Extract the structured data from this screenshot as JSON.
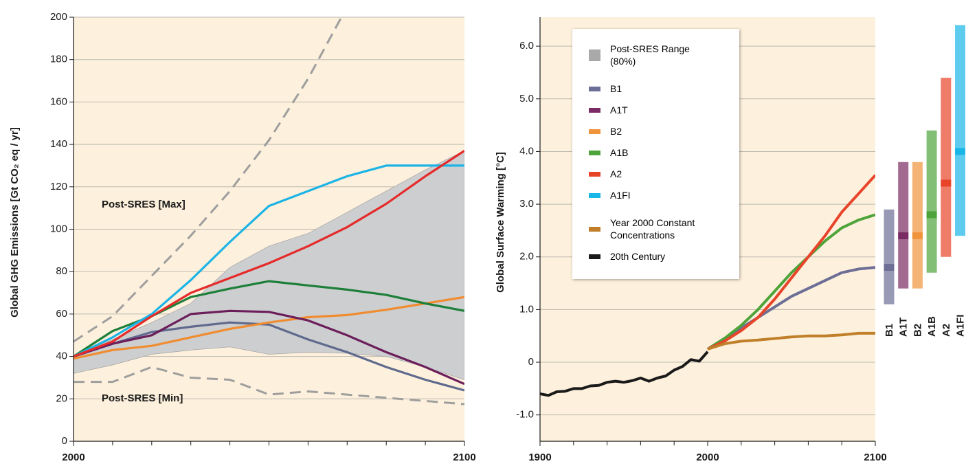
{
  "chart_data": [
    {
      "type": "line",
      "y_label": "Global GHG Emissions [Gt CO₂ eq / yr]",
      "xlim": [
        2000,
        2100
      ],
      "xticks": [
        2000,
        2100
      ],
      "x_minor_ticks": [
        2010,
        2020,
        2030,
        2040,
        2050,
        2060,
        2070,
        2080,
        2090
      ],
      "ylim": [
        0,
        200
      ],
      "yticks": [
        0,
        20,
        40,
        60,
        80,
        100,
        120,
        140,
        160,
        180,
        200
      ],
      "grid": true,
      "background": "#fdf0dc",
      "x": [
        2000,
        2010,
        2020,
        2030,
        2040,
        2050,
        2060,
        2070,
        2080,
        2090,
        2100
      ],
      "range": {
        "name": "Post-SRES Range (80%)",
        "color": "#cdcecf",
        "lower": [
          32,
          36,
          41,
          43,
          44.5,
          41,
          42,
          41.5,
          40,
          35,
          29
        ],
        "upper": [
          40,
          48,
          56,
          65,
          82,
          92,
          98,
          108,
          118,
          128,
          137
        ]
      },
      "series": [
        {
          "name": "Post-SRES [Max]",
          "color": "#9e9e9e",
          "dash": true,
          "values": [
            47,
            59,
            78,
            97,
            118,
            142,
            171,
            205,
            null,
            null,
            null
          ]
        },
        {
          "name": "Post-SRES [Min]",
          "color": "#9e9e9e",
          "dash": true,
          "values": [
            28,
            28,
            35,
            30,
            29,
            22,
            23.5,
            22,
            20.5,
            19,
            17.5
          ]
        },
        {
          "color": "#5f6a8e",
          "values": [
            40,
            46,
            51.5,
            54,
            56,
            55,
            48,
            42,
            35,
            29,
            24
          ]
        },
        {
          "color": "#f08c30",
          "values": [
            39,
            43,
            45,
            49,
            53,
            56,
            58.5,
            59.5,
            62,
            65,
            68
          ]
        },
        {
          "color": "#6b1e5a",
          "values": [
            40,
            46,
            50,
            60,
            61.5,
            61,
            57,
            50,
            42,
            35,
            27
          ]
        },
        {
          "color": "#1d7f3a",
          "values": [
            40,
            52,
            59,
            68,
            72,
            75.5,
            73.5,
            71.5,
            69,
            65,
            61.5
          ]
        },
        {
          "color": "#1cb4e6",
          "values": [
            40,
            49,
            60,
            76,
            94,
            111,
            118,
            125,
            130,
            130,
            130
          ]
        },
        {
          "color": "#e52a2a",
          "values": [
            40,
            47,
            59,
            70,
            77,
            84,
            92,
            101,
            112,
            125,
            137
          ]
        }
      ]
    },
    {
      "type": "line",
      "y_label": "Global Surface Warming [°C]",
      "xlim": [
        1900,
        2100
      ],
      "xticks": [
        1900,
        2000,
        2100
      ],
      "x_minor_ticks": [
        1920,
        1940,
        1960,
        1980,
        2020,
        2040,
        2060,
        2080
      ],
      "ylim": [
        -1.5,
        6.55
      ],
      "yticks": [
        {
          "value": -1,
          "label": "-1.0"
        },
        0,
        {
          "value": 1,
          "label": "1.0"
        },
        {
          "value": 2,
          "label": "2.0"
        },
        {
          "value": 3,
          "label": "3.0"
        },
        {
          "value": 4,
          "label": "4.0"
        },
        {
          "value": 5,
          "label": "5.0"
        },
        {
          "value": 6,
          "label": "6.0"
        }
      ],
      "grid": true,
      "background": "#fdf0dc",
      "scenario_x": [
        2000,
        2010,
        2020,
        2030,
        2040,
        2050,
        2060,
        2070,
        2080,
        2090,
        2100
      ],
      "scenarios": [
        {
          "name": "B1",
          "color": "#6c6e96",
          "low": 1.1,
          "best": 1.8,
          "high": 2.9,
          "values": [
            0.25,
            0.45,
            0.65,
            0.85,
            1.05,
            1.25,
            1.4,
            1.55,
            1.7,
            1.77,
            1.8
          ]
        },
        {
          "name": "A1T",
          "color": "#7a2b63",
          "low": 1.4,
          "best": 2.4,
          "high": 3.8
        },
        {
          "name": "B2",
          "color": "#f0943c",
          "low": 1.4,
          "best": 2.4,
          "high": 3.8
        },
        {
          "name": "A1B",
          "color": "#4ea43a",
          "low": 1.7,
          "best": 2.8,
          "high": 4.4,
          "values": [
            0.25,
            0.45,
            0.7,
            1.0,
            1.35,
            1.7,
            2.0,
            2.3,
            2.55,
            2.7,
            2.8
          ]
        },
        {
          "name": "A2",
          "color": "#e8442a",
          "low": 2.0,
          "best": 3.4,
          "high": 5.4,
          "values": [
            0.25,
            0.4,
            0.6,
            0.85,
            1.2,
            1.6,
            2.0,
            2.4,
            2.85,
            3.2,
            3.55
          ]
        },
        {
          "name": "A1FI",
          "color": "#1ab6e8",
          "low": 2.4,
          "best": 4.0,
          "high": 6.4
        }
      ],
      "series": [
        {
          "name": "Year 2000 Constant Concentrations",
          "color": "#c07f28",
          "x": [
            2000,
            2010,
            2020,
            2030,
            2040,
            2050,
            2060,
            2070,
            2080,
            2090,
            2100
          ],
          "values": [
            0.25,
            0.35,
            0.4,
            0.42,
            0.45,
            0.48,
            0.5,
            0.5,
            0.52,
            0.55,
            0.55
          ]
        },
        {
          "name": "20th Century",
          "color": "#1a1a1a",
          "x": [
            1900,
            1905,
            1910,
            1915,
            1920,
            1925,
            1930,
            1935,
            1940,
            1945,
            1950,
            1955,
            1960,
            1965,
            1970,
            1975,
            1980,
            1985,
            1990,
            1995,
            2000
          ],
          "values": [
            -0.6,
            -0.63,
            -0.56,
            -0.55,
            -0.5,
            -0.5,
            -0.45,
            -0.44,
            -0.38,
            -0.36,
            -0.38,
            -0.35,
            -0.3,
            -0.36,
            -0.3,
            -0.26,
            -0.15,
            -0.08,
            0.05,
            0.02,
            0.2
          ]
        }
      ]
    }
  ]
}
